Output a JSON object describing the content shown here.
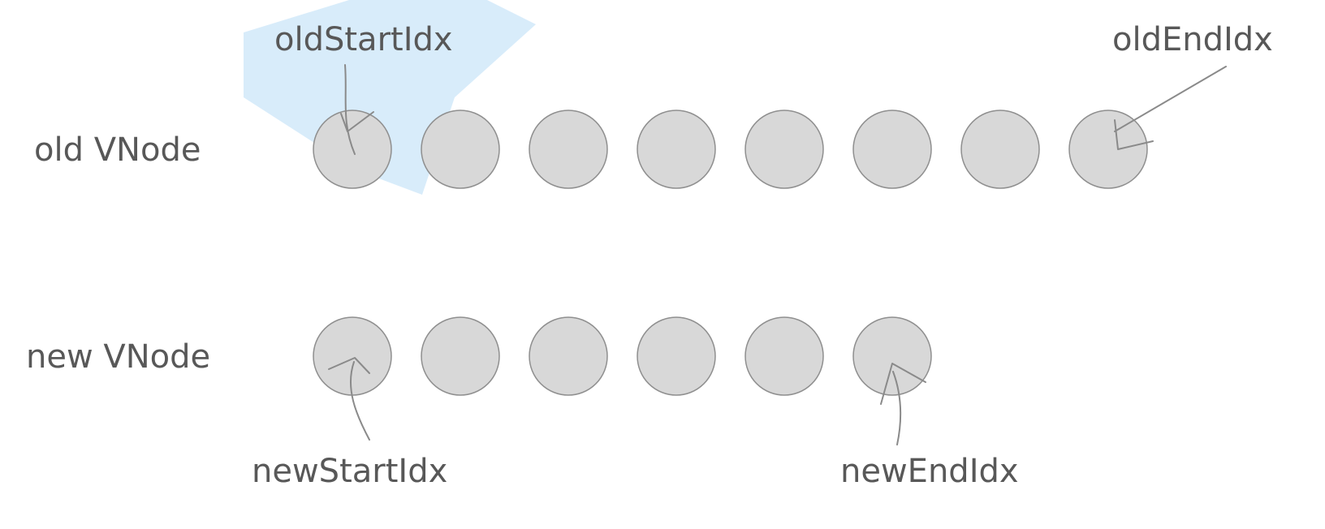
{
  "rows": {
    "old": {
      "label": "old VNode",
      "node_count": 8
    },
    "new": {
      "label": "new VNode",
      "node_count": 6
    }
  },
  "pointers": {
    "old_start": "oldStartIdx",
    "old_end": "oldEndIdx",
    "new_start": "newStartIdx",
    "new_end": "newEndIdx"
  },
  "colors": {
    "node_fill": "#d8d8d8",
    "node_stroke": "#8f8f8f",
    "text": "#585858",
    "arrow": "#8a8a8a",
    "watermark": "#8ec9f2"
  }
}
